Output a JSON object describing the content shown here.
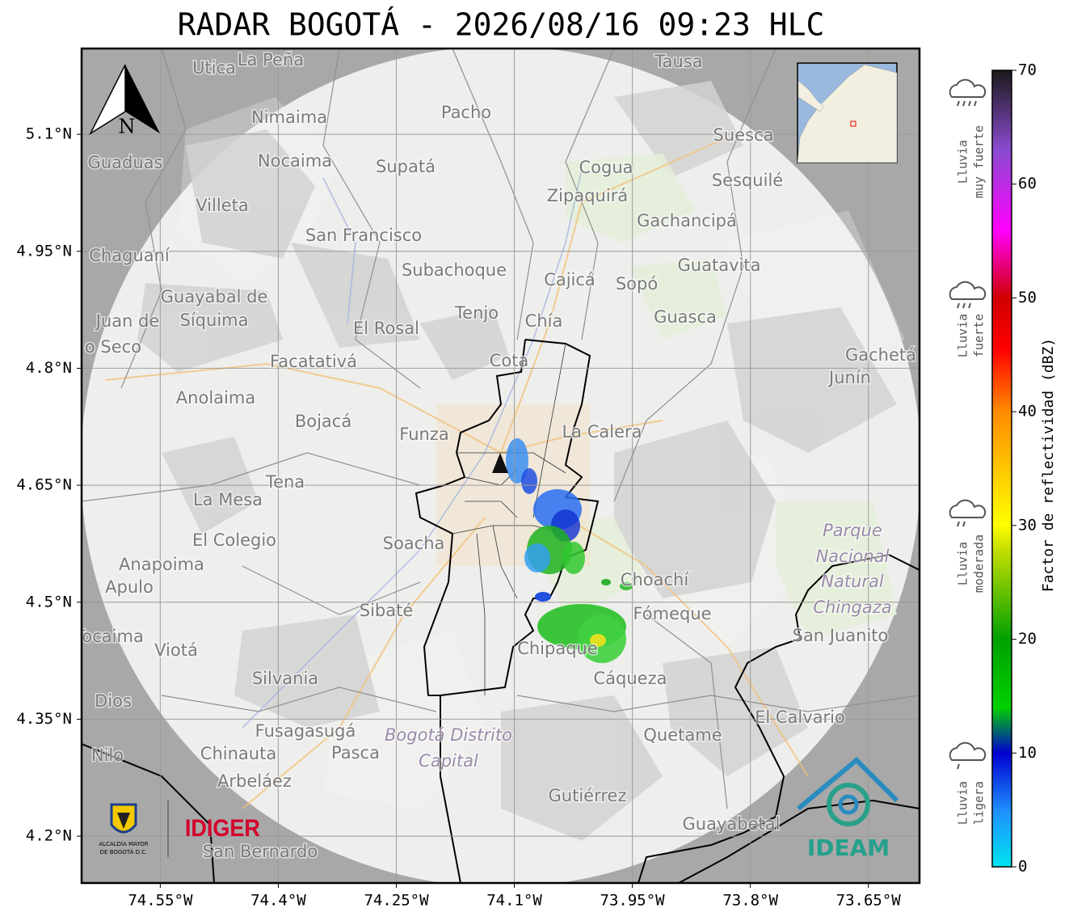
{
  "title": "RADAR BOGOTÁ - 2026/08/16 09:23 HLC",
  "map": {
    "lon_range": [
      -74.65,
      -73.585
    ],
    "lat_range": [
      4.14,
      5.21
    ],
    "lon_ticks": [
      {
        "value": -74.55,
        "label": "74.55°W"
      },
      {
        "value": -74.4,
        "label": "74.4°W"
      },
      {
        "value": -74.25,
        "label": "74.25°W"
      },
      {
        "value": -74.1,
        "label": "74.1°W"
      },
      {
        "value": -73.95,
        "label": "73.95°W"
      },
      {
        "value": -73.8,
        "label": "73.8°W"
      },
      {
        "value": -73.65,
        "label": "73.65°W"
      }
    ],
    "lat_ticks": [
      {
        "value": 5.1,
        "label": "5.1°N"
      },
      {
        "value": 4.95,
        "label": "4.95°N"
      },
      {
        "value": 4.8,
        "label": "4.8°N"
      },
      {
        "value": 4.65,
        "label": "4.65°N"
      },
      {
        "value": 4.5,
        "label": "4.5°N"
      },
      {
        "value": 4.35,
        "label": "4.35°N"
      },
      {
        "value": 4.2,
        "label": "4.2°N"
      }
    ],
    "north_label": "N",
    "places": [
      "La Peña",
      "Utica",
      "Tausa",
      "Pacho",
      "Nimaima",
      "Suesca",
      "Nocaima",
      "Guaduas",
      "Supatá",
      "Cogua",
      "Sesquilé",
      "Zipaquirá",
      "Villeta",
      "Gachancipá",
      "San Francisco",
      "Chaguaní",
      "Guatavita",
      "Subachoque",
      "Cajicá",
      "Sopó",
      "Guayabal de",
      "Síquima",
      "Tenjo",
      "Guasca",
      "Chía",
      "Juan de",
      "o Seco",
      "El Rosal",
      "Cota",
      "Gachetá",
      "Junín",
      "Facatativá",
      "Anolaima",
      "Bojacá",
      "Funza",
      "La Calera",
      "Tena",
      "La Mesa",
      "Parque",
      "Nacional",
      "Natural",
      "Chingaza",
      "El Colegio",
      "Soacha",
      "Anapoima",
      "Apulo",
      "Choachí",
      "Sibaté",
      "Fómeque",
      "San Juanito",
      "Tocaima",
      "Viotá",
      "Chipaque",
      "Silvania",
      "Cáqueza",
      "Dios",
      "El Calvario",
      "Fusagasugá",
      "Bogotá Distrito",
      "Capital",
      "Quetame",
      "Nilo",
      "Chinauta",
      "Pasca",
      "Arbeláez",
      "Gutiérrez",
      "Guayabetal",
      "San Bernardo"
    ]
  },
  "colorbar": {
    "label": "Factor de reflectividad (dBZ)",
    "range": [
      0,
      70
    ],
    "ticks": [
      0,
      10,
      20,
      30,
      40,
      50,
      60,
      70
    ]
  },
  "intensity_legend": [
    [
      "Lluvia",
      "muy fuerte"
    ],
    [
      "Lluvia",
      "fuerte"
    ],
    [
      "Lluvia",
      "moderada"
    ],
    [
      "Lluvia",
      "ligera"
    ]
  ],
  "logos": {
    "alcaldia": [
      "ALCALDÍA MAYOR",
      "DE BOGOTÁ D.C."
    ],
    "idiger": "IDIGER",
    "ideam": "IDEAM"
  }
}
